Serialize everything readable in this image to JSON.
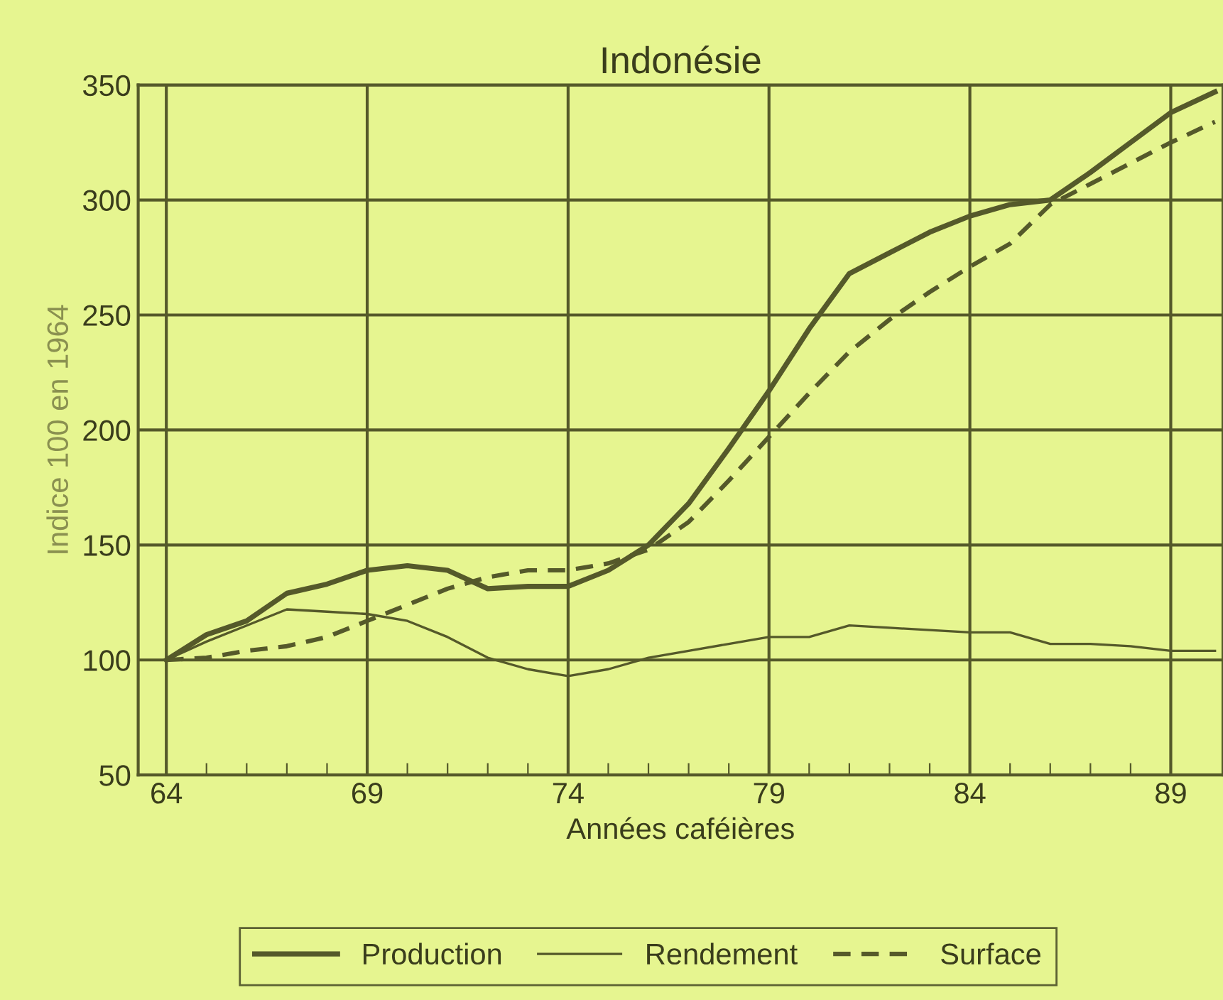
{
  "chart_data": {
    "type": "line",
    "title": "Indonésie",
    "xlabel": "Années caféières",
    "ylabel": "Indice 100 en 1964",
    "xlim": [
      63.3,
      90.3
    ],
    "ylim": [
      50,
      350
    ],
    "xticks": [
      64,
      {
        "value": 65,
        "label": null
      },
      {
        "value": 66,
        "label": null
      },
      {
        "value": 67,
        "label": null
      },
      {
        "value": 68,
        "label": null
      },
      69,
      {
        "value": 70,
        "label": null
      },
      {
        "value": 71,
        "label": null
      },
      {
        "value": 72,
        "label": null
      },
      {
        "value": 73,
        "label": null
      },
      74,
      {
        "value": 75,
        "label": null
      },
      {
        "value": 76,
        "label": null
      },
      {
        "value": 77,
        "label": null
      },
      {
        "value": 78,
        "label": null
      },
      79,
      {
        "value": 80,
        "label": null
      },
      {
        "value": 81,
        "label": null
      },
      {
        "value": 82,
        "label": null
      },
      {
        "value": 83,
        "label": null
      },
      84,
      {
        "value": 85,
        "label": null
      },
      {
        "value": 86,
        "label": null
      },
      {
        "value": 87,
        "label": null
      },
      {
        "value": 88,
        "label": null
      },
      89
    ],
    "yticks": [
      50,
      100,
      150,
      200,
      250,
      300,
      350
    ],
    "grid": true,
    "legend": "bottom",
    "marker": "none",
    "x": [
      64,
      65,
      66,
      67,
      68,
      69,
      70,
      71,
      72,
      73,
      74,
      75,
      76,
      77,
      78,
      79,
      80,
      81,
      82,
      83,
      84,
      85,
      86,
      87,
      88,
      89,
      90.1
    ],
    "series": [
      {
        "name": "Production",
        "color": "#55592a",
        "line_style": "solid",
        "values": [
          100,
          111,
          117,
          129,
          133,
          139,
          141,
          139,
          131,
          132,
          132,
          139,
          150,
          168,
          192,
          217,
          244,
          268,
          277,
          286,
          293,
          298,
          300,
          312,
          325,
          338,
          347
        ]
      },
      {
        "name": "Rendement",
        "color": "#55592a",
        "line_style": "solid",
        "values": [
          100,
          108,
          115,
          122,
          121,
          120,
          117,
          110,
          101,
          96,
          93,
          96,
          101,
          104,
          107,
          110,
          110,
          115,
          114,
          113,
          112,
          112,
          107,
          107,
          106,
          104,
          104
        ]
      },
      {
        "name": "Surface",
        "color": "#55592a",
        "line_style": "dashed",
        "values": [
          100,
          101,
          104,
          106,
          110,
          117,
          124,
          131,
          136,
          139,
          139,
          142,
          148,
          160,
          178,
          197,
          216,
          234,
          248,
          260,
          271,
          281,
          298,
          307,
          316,
          325,
          334
        ]
      }
    ]
  }
}
